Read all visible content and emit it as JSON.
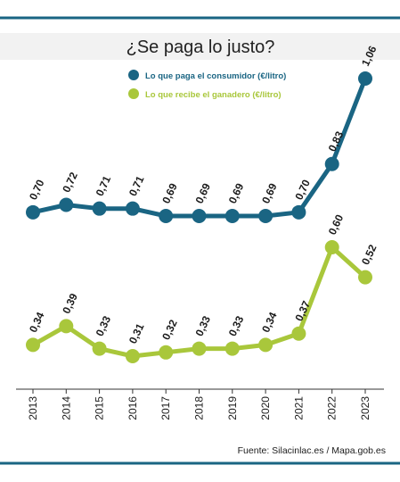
{
  "title": "¿Se paga lo justo?",
  "source": "Fuente: Silacinlac.es / Mapa.gob.es",
  "colors": {
    "consumer": "#1a6583",
    "farmer": "#a9c73b",
    "rule": "#1a6583",
    "title_band": "#f2f2f2"
  },
  "chart_data": {
    "type": "line",
    "title": "¿Se paga lo justo?",
    "x": [
      "2013",
      "2014",
      "2015",
      "2016",
      "2017",
      "2018",
      "2019",
      "2020",
      "2021",
      "2022",
      "2023"
    ],
    "series": [
      {
        "name": "Lo que paga el consumidor (€/litro)",
        "values": [
          0.7,
          0.72,
          0.71,
          0.71,
          0.69,
          0.69,
          0.69,
          0.69,
          0.7,
          0.83,
          1.06
        ],
        "labels": [
          "0,70",
          "0,72",
          "0,71",
          "0,71",
          "0,69",
          "0,69",
          "0,69",
          "0,69",
          "0,70",
          "0,83",
          "1,06"
        ],
        "color": "#1a6583"
      },
      {
        "name": "Lo que recibe el ganadero (€/litro)",
        "values": [
          0.34,
          0.39,
          0.33,
          0.31,
          0.32,
          0.33,
          0.33,
          0.34,
          0.37,
          0.6,
          0.52
        ],
        "labels": [
          "0,34",
          "0,39",
          "0,33",
          "0,31",
          "0,32",
          "0,33",
          "0,33",
          "0,34",
          "0,37",
          "0,60",
          "0,52"
        ],
        "color": "#a9c73b"
      }
    ],
    "legend_position": "top-left",
    "grid": false
  }
}
